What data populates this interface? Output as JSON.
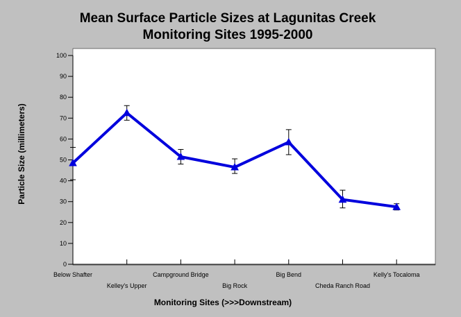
{
  "chart_data": {
    "type": "line",
    "title_lines": [
      "Mean Surface Particle Sizes at Lagunitas Creek",
      "Monitoring Sites 1995-2000"
    ],
    "xlabel": "Monitoring Sites (>>>Downstream)",
    "ylabel": "Particle Size (millimeters)",
    "ylim": [
      0,
      100
    ],
    "yticks": [
      0,
      10,
      20,
      30,
      40,
      50,
      60,
      70,
      80,
      90,
      100
    ],
    "categories": [
      "Below Shafter",
      "Kelley's Upper",
      "Campground Bridge",
      "Big Rock",
      "Big Bend",
      "Cheda Ranch Road",
      "Kelly's Tocaloma"
    ],
    "series": [
      {
        "values": [
          48.5,
          72.5,
          51.5,
          46.5,
          58.5,
          31.0,
          27.5
        ],
        "error_low": [
          40.5,
          69.0,
          48.0,
          43.5,
          52.5,
          27.0,
          26.0
        ],
        "error_high": [
          56.0,
          76.0,
          55.0,
          50.5,
          64.5,
          35.5,
          29.0
        ],
        "color": "#0000dd",
        "marker": "triangle"
      }
    ],
    "grid": false,
    "plot_background": "#ffffff",
    "background": "#c0c0c0"
  }
}
